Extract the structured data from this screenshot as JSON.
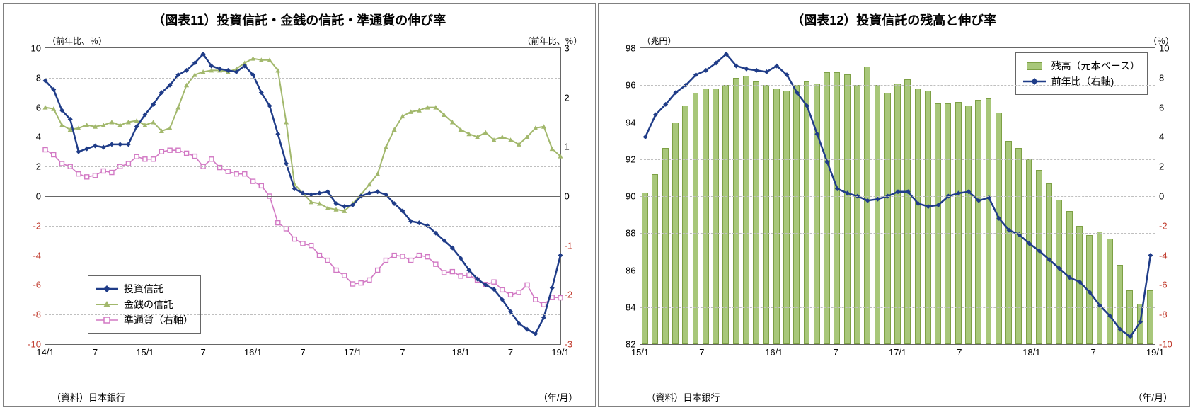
{
  "chart11": {
    "type": "line",
    "title": "（図表11）投資信託・金銭の信託・準通貨の伸び率",
    "unit_left": "（前年比、％）",
    "unit_right": "（前年比、％）",
    "source": "（資料）日本銀行",
    "xaxis_label": "（年/月）",
    "background_color": "#ffffff",
    "grid_color": "#bfbfbf",
    "ylim_left": [
      -10,
      10
    ],
    "ytick_step_left": 2,
    "ylim_right": [
      -3,
      3
    ],
    "ytick_step_right": 1,
    "x_labels": [
      "14/1",
      "7",
      "15/1",
      "7",
      "16/1",
      "7",
      "17/1",
      "7",
      "18/1",
      "7",
      "19/1"
    ],
    "n_points": 63,
    "legend": {
      "items": [
        {
          "label": "投資信託",
          "color": "#1f3c88",
          "marker": "diamond"
        },
        {
          "label": "金銭の信託",
          "color": "#a2b86c",
          "marker": "triangle"
        },
        {
          "label": "準通貨（右軸）",
          "color": "#d279c4",
          "marker": "square-open"
        }
      ]
    },
    "series": {
      "toushi_shintaku": {
        "color": "#1f3c88",
        "width": 2.5,
        "marker": "diamond",
        "axis": "left",
        "values": [
          7.8,
          7.2,
          5.8,
          5.2,
          3.0,
          3.2,
          3.4,
          3.3,
          3.5,
          3.5,
          3.5,
          4.7,
          5.5,
          6.2,
          7.0,
          7.5,
          8.2,
          8.5,
          9.0,
          9.6,
          8.8,
          8.6,
          8.5,
          8.4,
          8.8,
          8.2,
          7.0,
          6.1,
          4.2,
          2.2,
          0.5,
          0.2,
          0.1,
          0.2,
          0.3,
          -0.5,
          -0.7,
          -0.6,
          0.0,
          0.2,
          0.3,
          0.1,
          -0.5,
          -1.0,
          -1.7,
          -1.8,
          -2.0,
          -2.5,
          -3.0,
          -3.5,
          -4.2,
          -5.0,
          -5.6,
          -6.0,
          -6.3,
          -7.0,
          -7.8,
          -8.6,
          -9.0,
          -9.3,
          -8.2,
          -6.2,
          -4.0
        ]
      },
      "kinzen_shintaku": {
        "color": "#a2b86c",
        "width": 2,
        "marker": "triangle",
        "axis": "left",
        "values": [
          6.0,
          5.9,
          4.8,
          4.5,
          4.6,
          4.8,
          4.7,
          4.8,
          5.0,
          4.8,
          5.0,
          5.1,
          4.8,
          5.0,
          4.4,
          4.6,
          6.0,
          7.5,
          8.2,
          8.4,
          8.5,
          8.5,
          8.4,
          8.6,
          9.0,
          9.3,
          9.2,
          9.2,
          8.5,
          5.0,
          0.8,
          0.2,
          -0.4,
          -0.5,
          -0.8,
          -0.9,
          -1.0,
          -0.5,
          0.1,
          0.8,
          1.5,
          3.3,
          4.5,
          5.4,
          5.7,
          5.8,
          6.0,
          6.0,
          5.5,
          5.0,
          4.5,
          4.2,
          4.0,
          4.3,
          3.8,
          4.0,
          3.8,
          3.5,
          4.0,
          4.6,
          4.7,
          3.2,
          2.7
        ]
      },
      "juntsuuka": {
        "color": "#d279c4",
        "width": 1.6,
        "marker": "square-open",
        "axis": "right",
        "values": [
          0.94,
          0.84,
          0.66,
          0.6,
          0.45,
          0.39,
          0.42,
          0.51,
          0.48,
          0.6,
          0.66,
          0.8,
          0.75,
          0.75,
          0.9,
          0.93,
          0.93,
          0.87,
          0.81,
          0.6,
          0.75,
          0.58,
          0.5,
          0.45,
          0.45,
          0.3,
          0.21,
          0.0,
          -0.54,
          -0.66,
          -0.87,
          -0.96,
          -1.0,
          -1.2,
          -1.3,
          -1.5,
          -1.61,
          -1.78,
          -1.76,
          -1.7,
          -1.5,
          -1.3,
          -1.2,
          -1.22,
          -1.3,
          -1.2,
          -1.23,
          -1.38,
          -1.55,
          -1.53,
          -1.62,
          -1.6,
          -1.7,
          -1.79,
          -1.74,
          -1.9,
          -2.0,
          -1.95,
          -1.8,
          -2.1,
          -2.2,
          -2.05,
          -2.06
        ]
      }
    }
  },
  "chart12": {
    "type": "bar+line",
    "title": "（図表12）投資信託の残高と伸び率",
    "unit_left": "（兆円）",
    "unit_right": "（％）",
    "source": "（資料）日本銀行",
    "xaxis_label": "（年/月）",
    "background_color": "#ffffff",
    "grid_color": "#bfbfbf",
    "ylim_left": [
      82,
      98
    ],
    "ytick_step_left": 2,
    "ylim_right": [
      -10,
      10
    ],
    "ytick_step_right": 2,
    "x_labels": [
      "15/1",
      "7",
      "16/1",
      "7",
      "17/1",
      "7",
      "18/1",
      "7",
      "19/1"
    ],
    "n_points": 51,
    "legend": {
      "items": [
        {
          "label": "残高（元本ベース）",
          "color": "#a8c77a",
          "type": "bar"
        },
        {
          "label": "前年比（右軸)",
          "color": "#1f3c88",
          "type": "line",
          "marker": "diamond"
        }
      ]
    },
    "bars": {
      "color": "#a8c77a",
      "border": "#7da045",
      "values": [
        90.2,
        91.2,
        92.6,
        94.0,
        94.9,
        95.6,
        95.8,
        95.8,
        96.0,
        96.4,
        96.5,
        96.2,
        96.0,
        95.8,
        95.7,
        96.0,
        96.2,
        96.1,
        96.7,
        96.7,
        96.6,
        96.0,
        97.0,
        96.0,
        95.6,
        96.1,
        96.3,
        95.8,
        95.7,
        95.0,
        95.0,
        95.1,
        94.9,
        95.2,
        95.3,
        94.5,
        93.0,
        92.6,
        92.0,
        91.4,
        90.7,
        89.8,
        89.2,
        88.4,
        87.9,
        88.1,
        87.7,
        86.3,
        84.9,
        84.2,
        84.9
      ]
    },
    "line": {
      "color": "#1f3c88",
      "width": 2.5,
      "marker": "diamond",
      "axis": "right",
      "values": [
        4.0,
        5.5,
        6.2,
        7.0,
        7.5,
        8.2,
        8.5,
        9.0,
        9.6,
        8.8,
        8.6,
        8.5,
        8.4,
        8.8,
        8.2,
        7.0,
        6.1,
        4.2,
        2.3,
        0.5,
        0.2,
        0.0,
        -0.3,
        -0.2,
        0.0,
        0.3,
        0.3,
        -0.5,
        -0.7,
        -0.6,
        0.0,
        0.2,
        0.3,
        -0.3,
        -0.1,
        -1.5,
        -2.3,
        -2.6,
        -3.2,
        -3.7,
        -4.3,
        -4.9,
        -5.5,
        -5.8,
        -6.5,
        -7.4,
        -8.1,
        -9.0,
        -9.5,
        -8.5,
        -4.0
      ]
    }
  }
}
